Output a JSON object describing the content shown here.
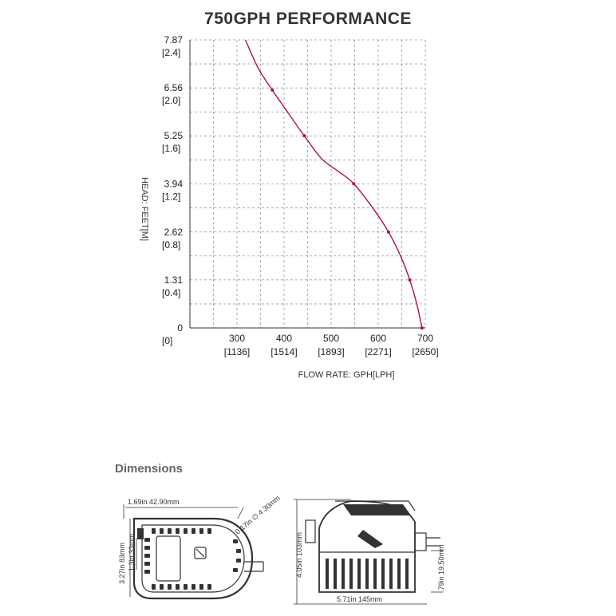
{
  "chart_data": {
    "type": "line",
    "title": "750GPH PERFORMANCE",
    "xlabel": "FLOW RATE: GPH[LPH]",
    "ylabel": "HEAD: FEET[M]",
    "xlim": [
      200,
      700
    ],
    "ylim": [
      0,
      7.87
    ],
    "grid": true,
    "x_ticks": [
      {
        "value": 200,
        "label": "",
        "sub": ""
      },
      {
        "value": 300,
        "label": "300",
        "sub": "[1136]"
      },
      {
        "value": 400,
        "label": "400",
        "sub": "[1514]"
      },
      {
        "value": 500,
        "label": "500",
        "sub": "[1893]"
      },
      {
        "value": 600,
        "label": "600",
        "sub": "[2271]"
      },
      {
        "value": 700,
        "label": "700",
        "sub": "[2650]"
      }
    ],
    "y_ticks": [
      {
        "value": 0,
        "label": "0",
        "sub": "[0]"
      },
      {
        "value": 1.31,
        "label": "1.31",
        "sub": "[0.4]"
      },
      {
        "value": 2.62,
        "label": "2.62",
        "sub": "[0.8]"
      },
      {
        "value": 3.94,
        "label": "3.94",
        "sub": "[1.2]"
      },
      {
        "value": 5.25,
        "label": "5.25",
        "sub": "[1.6]"
      },
      {
        "value": 6.56,
        "label": "6.56",
        "sub": "[2.0]"
      },
      {
        "value": 7.87,
        "label": "7.87",
        "sub": "[2.4]"
      }
    ],
    "series": [
      {
        "color": "#b0113a",
        "curve": [
          {
            "x": 318,
            "y": 7.87
          },
          {
            "x": 345,
            "y": 7.1
          },
          {
            "x": 375,
            "y": 6.5
          },
          {
            "x": 410,
            "y": 5.85
          },
          {
            "x": 443,
            "y": 5.25
          },
          {
            "x": 480,
            "y": 4.62
          },
          {
            "x": 515,
            "y": 4.28
          },
          {
            "x": 548,
            "y": 3.94
          },
          {
            "x": 590,
            "y": 3.25
          },
          {
            "x": 622,
            "y": 2.62
          },
          {
            "x": 648,
            "y": 1.95
          },
          {
            "x": 667,
            "y": 1.31
          },
          {
            "x": 682,
            "y": 0.65
          },
          {
            "x": 693,
            "y": 0
          }
        ],
        "markers": [
          {
            "x": 375,
            "y": 6.5
          },
          {
            "x": 443,
            "y": 5.25
          },
          {
            "x": 548,
            "y": 3.94
          },
          {
            "x": 622,
            "y": 2.62
          },
          {
            "x": 667,
            "y": 1.31
          },
          {
            "x": 693,
            "y": 0
          }
        ]
      }
    ]
  },
  "dimensions": {
    "heading": "Dimensions",
    "top_width": "1.69in  42.90mm",
    "diameter": "0.17in ∅ 4.30mm",
    "height_total": "3.27in 83mm",
    "height_inner": "1.3in 33mm",
    "side_height": "4.05in 103mm",
    "side_outlet": ".79in 19.50mm",
    "side_width": "5.71in  145mm"
  }
}
